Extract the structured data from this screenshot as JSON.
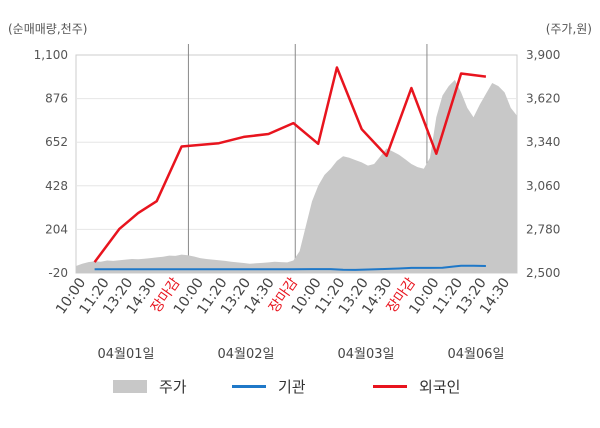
{
  "unit_left": "(순매매량,천주)",
  "unit_right": "(주가,원)",
  "chart_data": {
    "type": "line",
    "left_axis": {
      "ticks": [
        -20,
        204,
        428,
        652,
        876,
        1100
      ],
      "tick_labels": [
        "-20",
        "204",
        "428",
        "652",
        "876",
        "1,100"
      ],
      "ylim": [
        -20,
        1100
      ]
    },
    "right_axis": {
      "ticks": [
        2500,
        2780,
        3060,
        3340,
        3620,
        3900
      ],
      "tick_labels": [
        "2,500",
        "2,780",
        "3,060",
        "3,340",
        "3,620",
        "3,900"
      ],
      "ylim": [
        2500,
        3900
      ]
    },
    "x_tick_labels": [
      {
        "label": "10:00",
        "red": false
      },
      {
        "label": "11:20",
        "red": false
      },
      {
        "label": "13:20",
        "red": false
      },
      {
        "label": "14:30",
        "red": false
      },
      {
        "label": "장마감",
        "red": true
      },
      {
        "label": "10:00",
        "red": false
      },
      {
        "label": "11:20",
        "red": false
      },
      {
        "label": "13:20",
        "red": false
      },
      {
        "label": "14:30",
        "red": false
      },
      {
        "label": "장마감",
        "red": true
      },
      {
        "label": "10:00",
        "red": false
      },
      {
        "label": "11:20",
        "red": false
      },
      {
        "label": "13:20",
        "red": false
      },
      {
        "label": "14:30",
        "red": false
      },
      {
        "label": "장마감",
        "red": true
      },
      {
        "label": "10:00",
        "red": false
      },
      {
        "label": "11:20",
        "red": false
      },
      {
        "label": "13:20",
        "red": false
      },
      {
        "label": "14:30",
        "red": false
      }
    ],
    "date_labels": [
      "04월01일",
      "04월02일",
      "04월03일",
      "04월06일"
    ],
    "series": [
      {
        "name": "주가",
        "axis": "right",
        "kind": "area",
        "color": "#c8c8c8",
        "points": [
          [
            0,
            2545
          ],
          [
            1,
            2560
          ],
          [
            2,
            2570
          ],
          [
            3,
            2575
          ],
          [
            4,
            2572
          ],
          [
            5,
            2580
          ],
          [
            6,
            2578
          ],
          [
            7,
            2582
          ],
          [
            8,
            2586
          ],
          [
            9,
            2590
          ],
          [
            10,
            2588
          ],
          [
            11,
            2592
          ],
          [
            12,
            2596
          ],
          [
            13,
            2600
          ],
          [
            14,
            2604
          ],
          [
            15,
            2612
          ],
          [
            16,
            2610
          ],
          [
            17,
            2618
          ],
          [
            18,
            2614
          ],
          [
            19,
            2606
          ],
          [
            20,
            2596
          ],
          [
            21,
            2590
          ],
          [
            22,
            2586
          ],
          [
            23,
            2582
          ],
          [
            24,
            2578
          ],
          [
            25,
            2572
          ],
          [
            26,
            2568
          ],
          [
            27,
            2564
          ],
          [
            28,
            2560
          ],
          [
            29,
            2562
          ],
          [
            30,
            2565
          ],
          [
            31,
            2568
          ],
          [
            32,
            2572
          ],
          [
            33,
            2570
          ],
          [
            34,
            2568
          ],
          [
            35,
            2580
          ],
          [
            36,
            2640
          ],
          [
            37,
            2800
          ],
          [
            38,
            2960
          ],
          [
            39,
            3060
          ],
          [
            40,
            3130
          ],
          [
            41,
            3170
          ],
          [
            42,
            3220
          ],
          [
            43,
            3250
          ],
          [
            44,
            3240
          ],
          [
            45,
            3225
          ],
          [
            46,
            3210
          ],
          [
            47,
            3190
          ],
          [
            48,
            3200
          ],
          [
            49,
            3250
          ],
          [
            50,
            3300
          ],
          [
            51,
            3280
          ],
          [
            52,
            3260
          ],
          [
            53,
            3230
          ],
          [
            54,
            3200
          ],
          [
            55,
            3180
          ],
          [
            56,
            3170
          ],
          [
            57,
            3240
          ],
          [
            58,
            3500
          ],
          [
            59,
            3640
          ],
          [
            60,
            3700
          ],
          [
            61,
            3740
          ],
          [
            62,
            3660
          ],
          [
            63,
            3560
          ],
          [
            64,
            3500
          ],
          [
            65,
            3580
          ],
          [
            66,
            3650
          ],
          [
            67,
            3720
          ],
          [
            68,
            3700
          ],
          [
            69,
            3660
          ],
          [
            70,
            3560
          ],
          [
            71,
            3510
          ]
        ]
      },
      {
        "name": "기관",
        "axis": "left",
        "kind": "line",
        "color": "#1f78c8",
        "points": [
          [
            3,
            -1
          ],
          [
            10,
            -1
          ],
          [
            20,
            -1
          ],
          [
            30,
            -1
          ],
          [
            35,
            -1
          ],
          [
            38,
            0
          ],
          [
            41,
            0
          ],
          [
            43,
            -3
          ],
          [
            45,
            -4
          ],
          [
            47,
            -2
          ],
          [
            49,
            0
          ],
          [
            52,
            3
          ],
          [
            54,
            6
          ],
          [
            57,
            6
          ],
          [
            59,
            7
          ],
          [
            61,
            14
          ],
          [
            62,
            17
          ],
          [
            64,
            17
          ],
          [
            66,
            16
          ]
        ]
      },
      {
        "name": "외국인",
        "axis": "left",
        "kind": "line",
        "color": "#e8141e",
        "points": [
          [
            3,
            36
          ],
          [
            7,
            207
          ],
          [
            10,
            288
          ],
          [
            13,
            349
          ],
          [
            17,
            630
          ],
          [
            23,
            647
          ],
          [
            27,
            679
          ],
          [
            31,
            694
          ],
          [
            35,
            750
          ],
          [
            39,
            644
          ],
          [
            42,
            1036
          ],
          [
            46,
            719
          ],
          [
            50,
            582
          ],
          [
            54,
            930
          ],
          [
            58,
            593
          ],
          [
            62,
            1005
          ],
          [
            66,
            989
          ]
        ]
      }
    ]
  },
  "legend": [
    {
      "label": "주가",
      "kind": "area",
      "color": "#c8c8c8"
    },
    {
      "label": "기관",
      "kind": "line",
      "color": "#1f78c8"
    },
    {
      "label": "외국인",
      "kind": "line",
      "color": "#e8141e"
    }
  ]
}
